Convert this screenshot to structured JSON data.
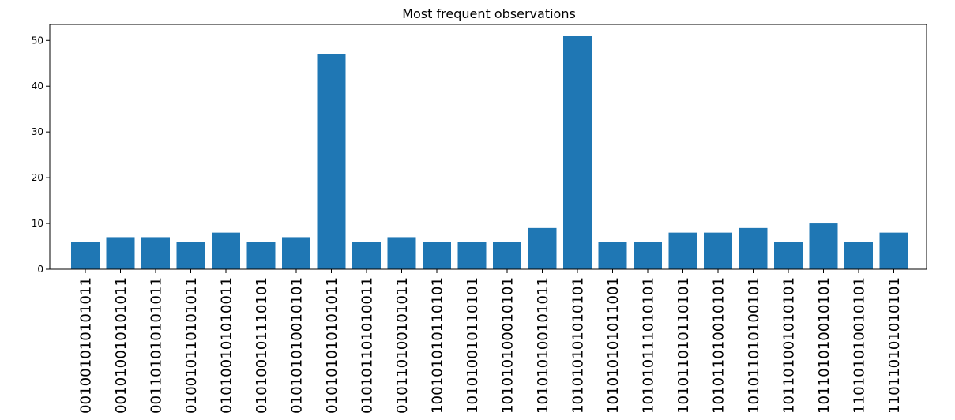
{
  "chart_data": {
    "type": "bar",
    "title": "Most frequent observations",
    "xlabel": "",
    "ylabel": "",
    "ylim": [
      0,
      53.5
    ],
    "yticks": [
      0,
      10,
      20,
      30,
      40,
      50
    ],
    "grid": false,
    "bar_color": "#1f77b4",
    "categories": [
      "001001010101011",
      "001010010101011",
      "001101010101011",
      "010010110101011",
      "010100101010011",
      "010100101110101",
      "010101010010101",
      "010101010101011",
      "010101101010011",
      "010110100101011",
      "100101010110101",
      "101010010110101",
      "101010100010101",
      "101010100101011",
      "101010101010101",
      "101010101011001",
      "101010111010101",
      "101011010110101",
      "101011010010101",
      "101011010100101",
      "101101001010101",
      "101101010010101",
      "110101010010101",
      "110110101010101"
    ],
    "values": [
      6,
      7,
      7,
      6,
      8,
      6,
      7,
      47,
      6,
      7,
      6,
      6,
      6,
      9,
      51,
      6,
      6,
      8,
      8,
      9,
      6,
      10,
      6,
      8
    ]
  }
}
